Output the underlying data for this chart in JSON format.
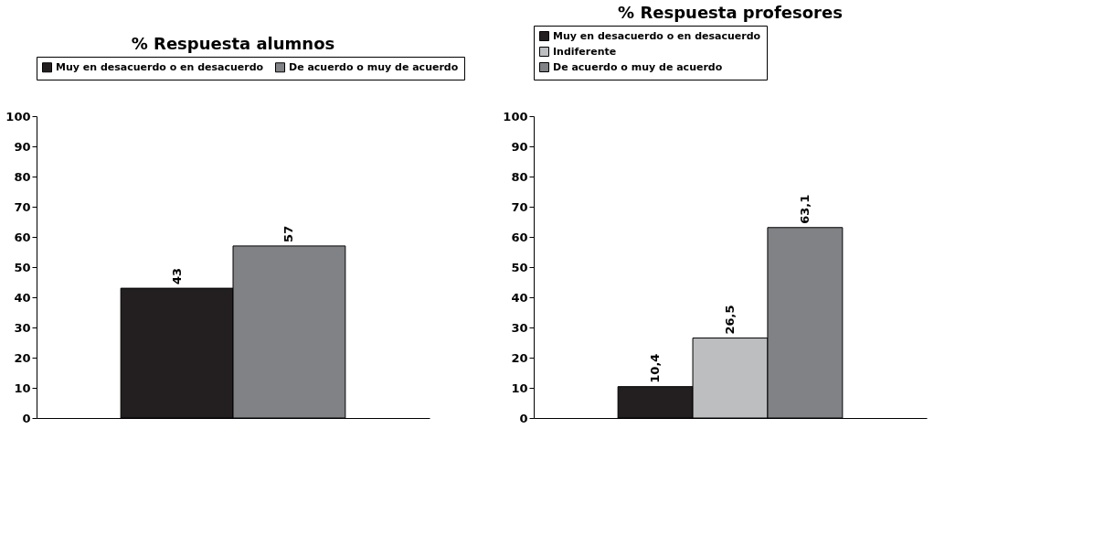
{
  "chart_data": [
    {
      "type": "bar",
      "title": "% Respuesta alumnos",
      "categories": [
        null
      ],
      "ylim": [
        0,
        100
      ],
      "yticks": [
        0,
        10,
        20,
        30,
        40,
        50,
        60,
        70,
        80,
        90,
        100
      ],
      "grid": false,
      "legend": "top",
      "series": [
        {
          "name": "Muy en desacuerdo o en desacuerdo",
          "color": "#231f20",
          "values": [
            43
          ],
          "value_labels": [
            "43"
          ]
        },
        {
          "name": "De acuerdo o muy de acuerdo",
          "color": "#808285",
          "values": [
            57
          ],
          "value_labels": [
            "57"
          ]
        }
      ]
    },
    {
      "type": "bar",
      "title": "% Respuesta profesores",
      "categories": [
        null
      ],
      "ylim": [
        0,
        100
      ],
      "yticks": [
        0,
        10,
        20,
        30,
        40,
        50,
        60,
        70,
        80,
        90,
        100
      ],
      "grid": false,
      "legend": "top",
      "series": [
        {
          "name": "Muy en desacuerdo o en desacuerdo",
          "color": "#231f20",
          "values": [
            10.4
          ],
          "value_labels": [
            "10,4"
          ]
        },
        {
          "name": "Indiferente",
          "color": "#bcbec0",
          "values": [
            26.5
          ],
          "value_labels": [
            "26,5"
          ]
        },
        {
          "name": "De acuerdo o muy de acuerdo",
          "color": "#808285",
          "values": [
            63.1
          ],
          "value_labels": [
            "63,1"
          ]
        }
      ]
    }
  ]
}
